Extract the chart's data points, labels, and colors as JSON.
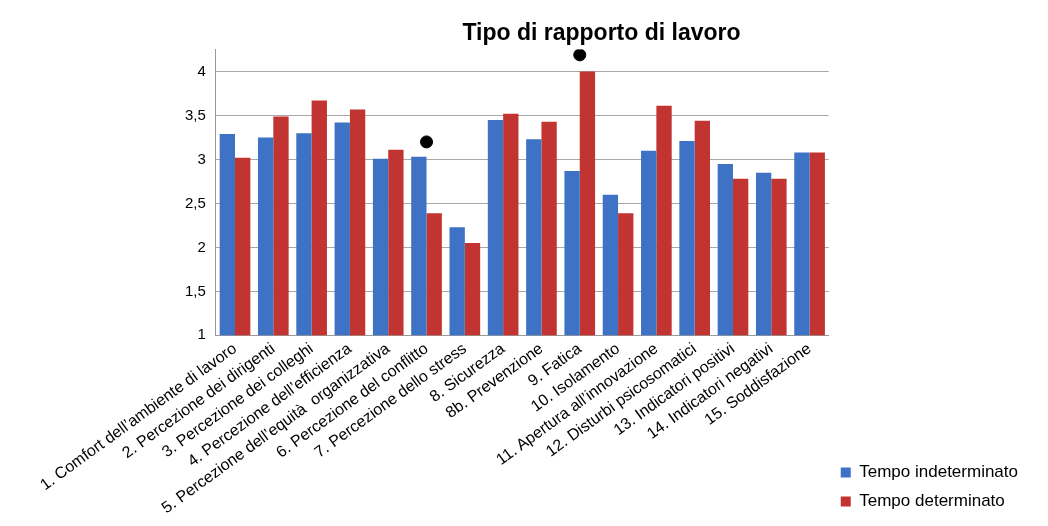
{
  "chart_data": {
    "type": "bar",
    "title": "Tipo di rapporto di lavoro",
    "categories": [
      "1. Comfort dell’ambiente di lavoro",
      "2. Percezione dei dirigenti",
      "3. Percezione dei colleghi",
      "4. Percezione dell’efficienza",
      "5. Percezione dell’equità  organizzativa",
      "6. Percezione del conflitto",
      "7. Percezione dello stress",
      "8. Sicurezza",
      "8b. Prevenzione",
      "9. Fatica",
      "10. Isolamento",
      "11. Apertura all’innovazione",
      "12. Disturbi psicosomatici",
      "13. Indicatori positivi",
      "14. Indicatori negativi",
      "15. Soddisfazione"
    ],
    "series": [
      {
        "name": "Tempo indeterminato",
        "color": "#3d72c4",
        "values": [
          3.29,
          3.25,
          3.3,
          3.42,
          3.01,
          3.03,
          2.23,
          3.45,
          3.23,
          2.87,
          2.6,
          3.1,
          3.21,
          2.95,
          2.85,
          3.08
        ]
      },
      {
        "name": "Tempo determinato",
        "color": "#c23431",
        "values": [
          3.02,
          3.49,
          3.67,
          3.57,
          3.11,
          2.39,
          2.05,
          3.52,
          3.43,
          4.0,
          2.39,
          3.61,
          3.44,
          2.78,
          2.78,
          3.08
        ]
      },
      {
        "type": "scatter",
        "color": "#000000",
        "marker": "circle",
        "values": [
          null,
          null,
          null,
          null,
          null,
          3.2,
          null,
          null,
          null,
          4.19,
          null,
          null,
          null,
          null,
          null,
          null
        ]
      }
    ],
    "ylim": [
      1,
      4.25
    ],
    "yticks": [
      1,
      {
        "value": 1.5,
        "label": "1,5"
      },
      2,
      {
        "value": 2.5,
        "label": "2,5"
      },
      3,
      {
        "value": 3.5,
        "label": "3,5"
      },
      4
    ],
    "grid": "y",
    "legend": "right"
  }
}
